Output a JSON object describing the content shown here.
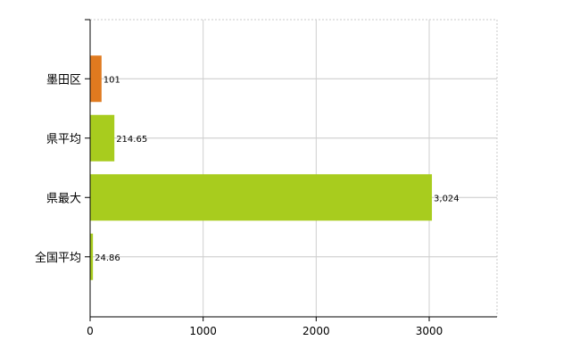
{
  "chart_data": {
    "type": "bar",
    "orientation": "horizontal",
    "categories": [
      "墨田区",
      "県平均",
      "県最大",
      "全国平均"
    ],
    "values": [
      101,
      214.65,
      3024,
      24.86
    ],
    "value_labels": [
      "101",
      "214.65",
      "3,024",
      "24.86"
    ],
    "bar_colors": [
      "#e07a1f",
      "#a8cc1e",
      "#a8cc1e",
      "#a8cc1e"
    ],
    "xlim": [
      0,
      3600
    ],
    "x_ticks": [
      0,
      1000,
      2000,
      3000
    ],
    "x_tick_labels": [
      "0",
      "1000",
      "2000",
      "3000"
    ],
    "grid": true,
    "legend": "none"
  }
}
